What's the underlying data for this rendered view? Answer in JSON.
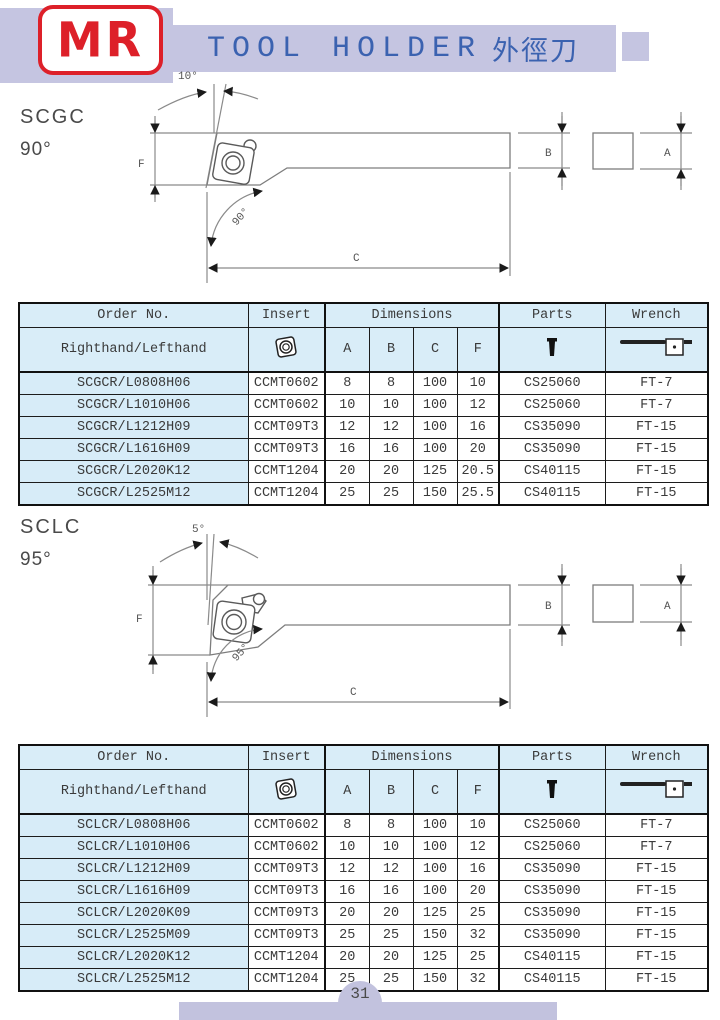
{
  "header": {
    "logo_text": "MR",
    "title": "TOOL HOLDER",
    "title_cjk": "外徑刀"
  },
  "colors": {
    "banner_lavender": "#c5c5e1",
    "title_blue": "#3b62b0",
    "logo_red": "#dd2029",
    "table_header_bg": "#d9edf8",
    "order_column_bg": "#d7ecf8",
    "footer_bar": "#c2c2de"
  },
  "sections": [
    {
      "code": "SCGC",
      "angle": "90°",
      "diagram": {
        "lead_angle": "10°",
        "cutting_angle": "90°",
        "dim_f": "F",
        "dim_c": "C",
        "dim_b": "B",
        "dim_a": "A"
      }
    },
    {
      "code": "SCLC",
      "angle": "95°",
      "diagram": {
        "lead_angle": "5°",
        "cutting_angle": "95°",
        "dim_f": "F",
        "dim_c": "C",
        "dim_b": "B",
        "dim_a": "A"
      }
    }
  ],
  "table_header": {
    "order_no": "Order No.",
    "insert": "Insert",
    "dimensions": "Dimensions",
    "parts": "Parts",
    "wrench": "Wrench",
    "hand": "Righthand/Lefthand",
    "dim_cols": [
      "A",
      "B",
      "C",
      "F"
    ],
    "insert_icon": "insert-shape-icon",
    "parts_icon": "clamp-screw-icon",
    "wrench_icon": "torx-wrench-icon"
  },
  "tables": [
    {
      "rows": [
        [
          "SCGCR/L0808H06",
          "CCMT0602",
          "8",
          "8",
          "100",
          "10",
          "CS25060",
          "FT-7"
        ],
        [
          "SCGCR/L1010H06",
          "CCMT0602",
          "10",
          "10",
          "100",
          "12",
          "CS25060",
          "FT-7"
        ],
        [
          "SCGCR/L1212H09",
          "CCMT09T3",
          "12",
          "12",
          "100",
          "16",
          "CS35090",
          "FT-15"
        ],
        [
          "SCGCR/L1616H09",
          "CCMT09T3",
          "16",
          "16",
          "100",
          "20",
          "CS35090",
          "FT-15"
        ],
        [
          "SCGCR/L2020K12",
          "CCMT1204",
          "20",
          "20",
          "125",
          "20.5",
          "CS40115",
          "FT-15"
        ],
        [
          "SCGCR/L2525M12",
          "CCMT1204",
          "25",
          "25",
          "150",
          "25.5",
          "CS40115",
          "FT-15"
        ]
      ]
    },
    {
      "rows": [
        [
          "SCLCR/L0808H06",
          "CCMT0602",
          "8",
          "8",
          "100",
          "10",
          "CS25060",
          "FT-7"
        ],
        [
          "SCLCR/L1010H06",
          "CCMT0602",
          "10",
          "10",
          "100",
          "12",
          "CS25060",
          "FT-7"
        ],
        [
          "SCLCR/L1212H09",
          "CCMT09T3",
          "12",
          "12",
          "100",
          "16",
          "CS35090",
          "FT-15"
        ],
        [
          "SCLCR/L1616H09",
          "CCMT09T3",
          "16",
          "16",
          "100",
          "20",
          "CS35090",
          "FT-15"
        ],
        [
          "SCLCR/L2020K09",
          "CCMT09T3",
          "20",
          "20",
          "125",
          "25",
          "CS35090",
          "FT-15"
        ],
        [
          "SCLCR/L2525M09",
          "CCMT09T3",
          "25",
          "25",
          "150",
          "32",
          "CS35090",
          "FT-15"
        ],
        [
          "SCLCR/L2020K12",
          "CCMT1204",
          "20",
          "20",
          "125",
          "25",
          "CS40115",
          "FT-15"
        ],
        [
          "SCLCR/L2525M12",
          "CCMT1204",
          "25",
          "25",
          "150",
          "32",
          "CS40115",
          "FT-15"
        ]
      ]
    }
  ],
  "footer": {
    "page_number": "31"
  }
}
